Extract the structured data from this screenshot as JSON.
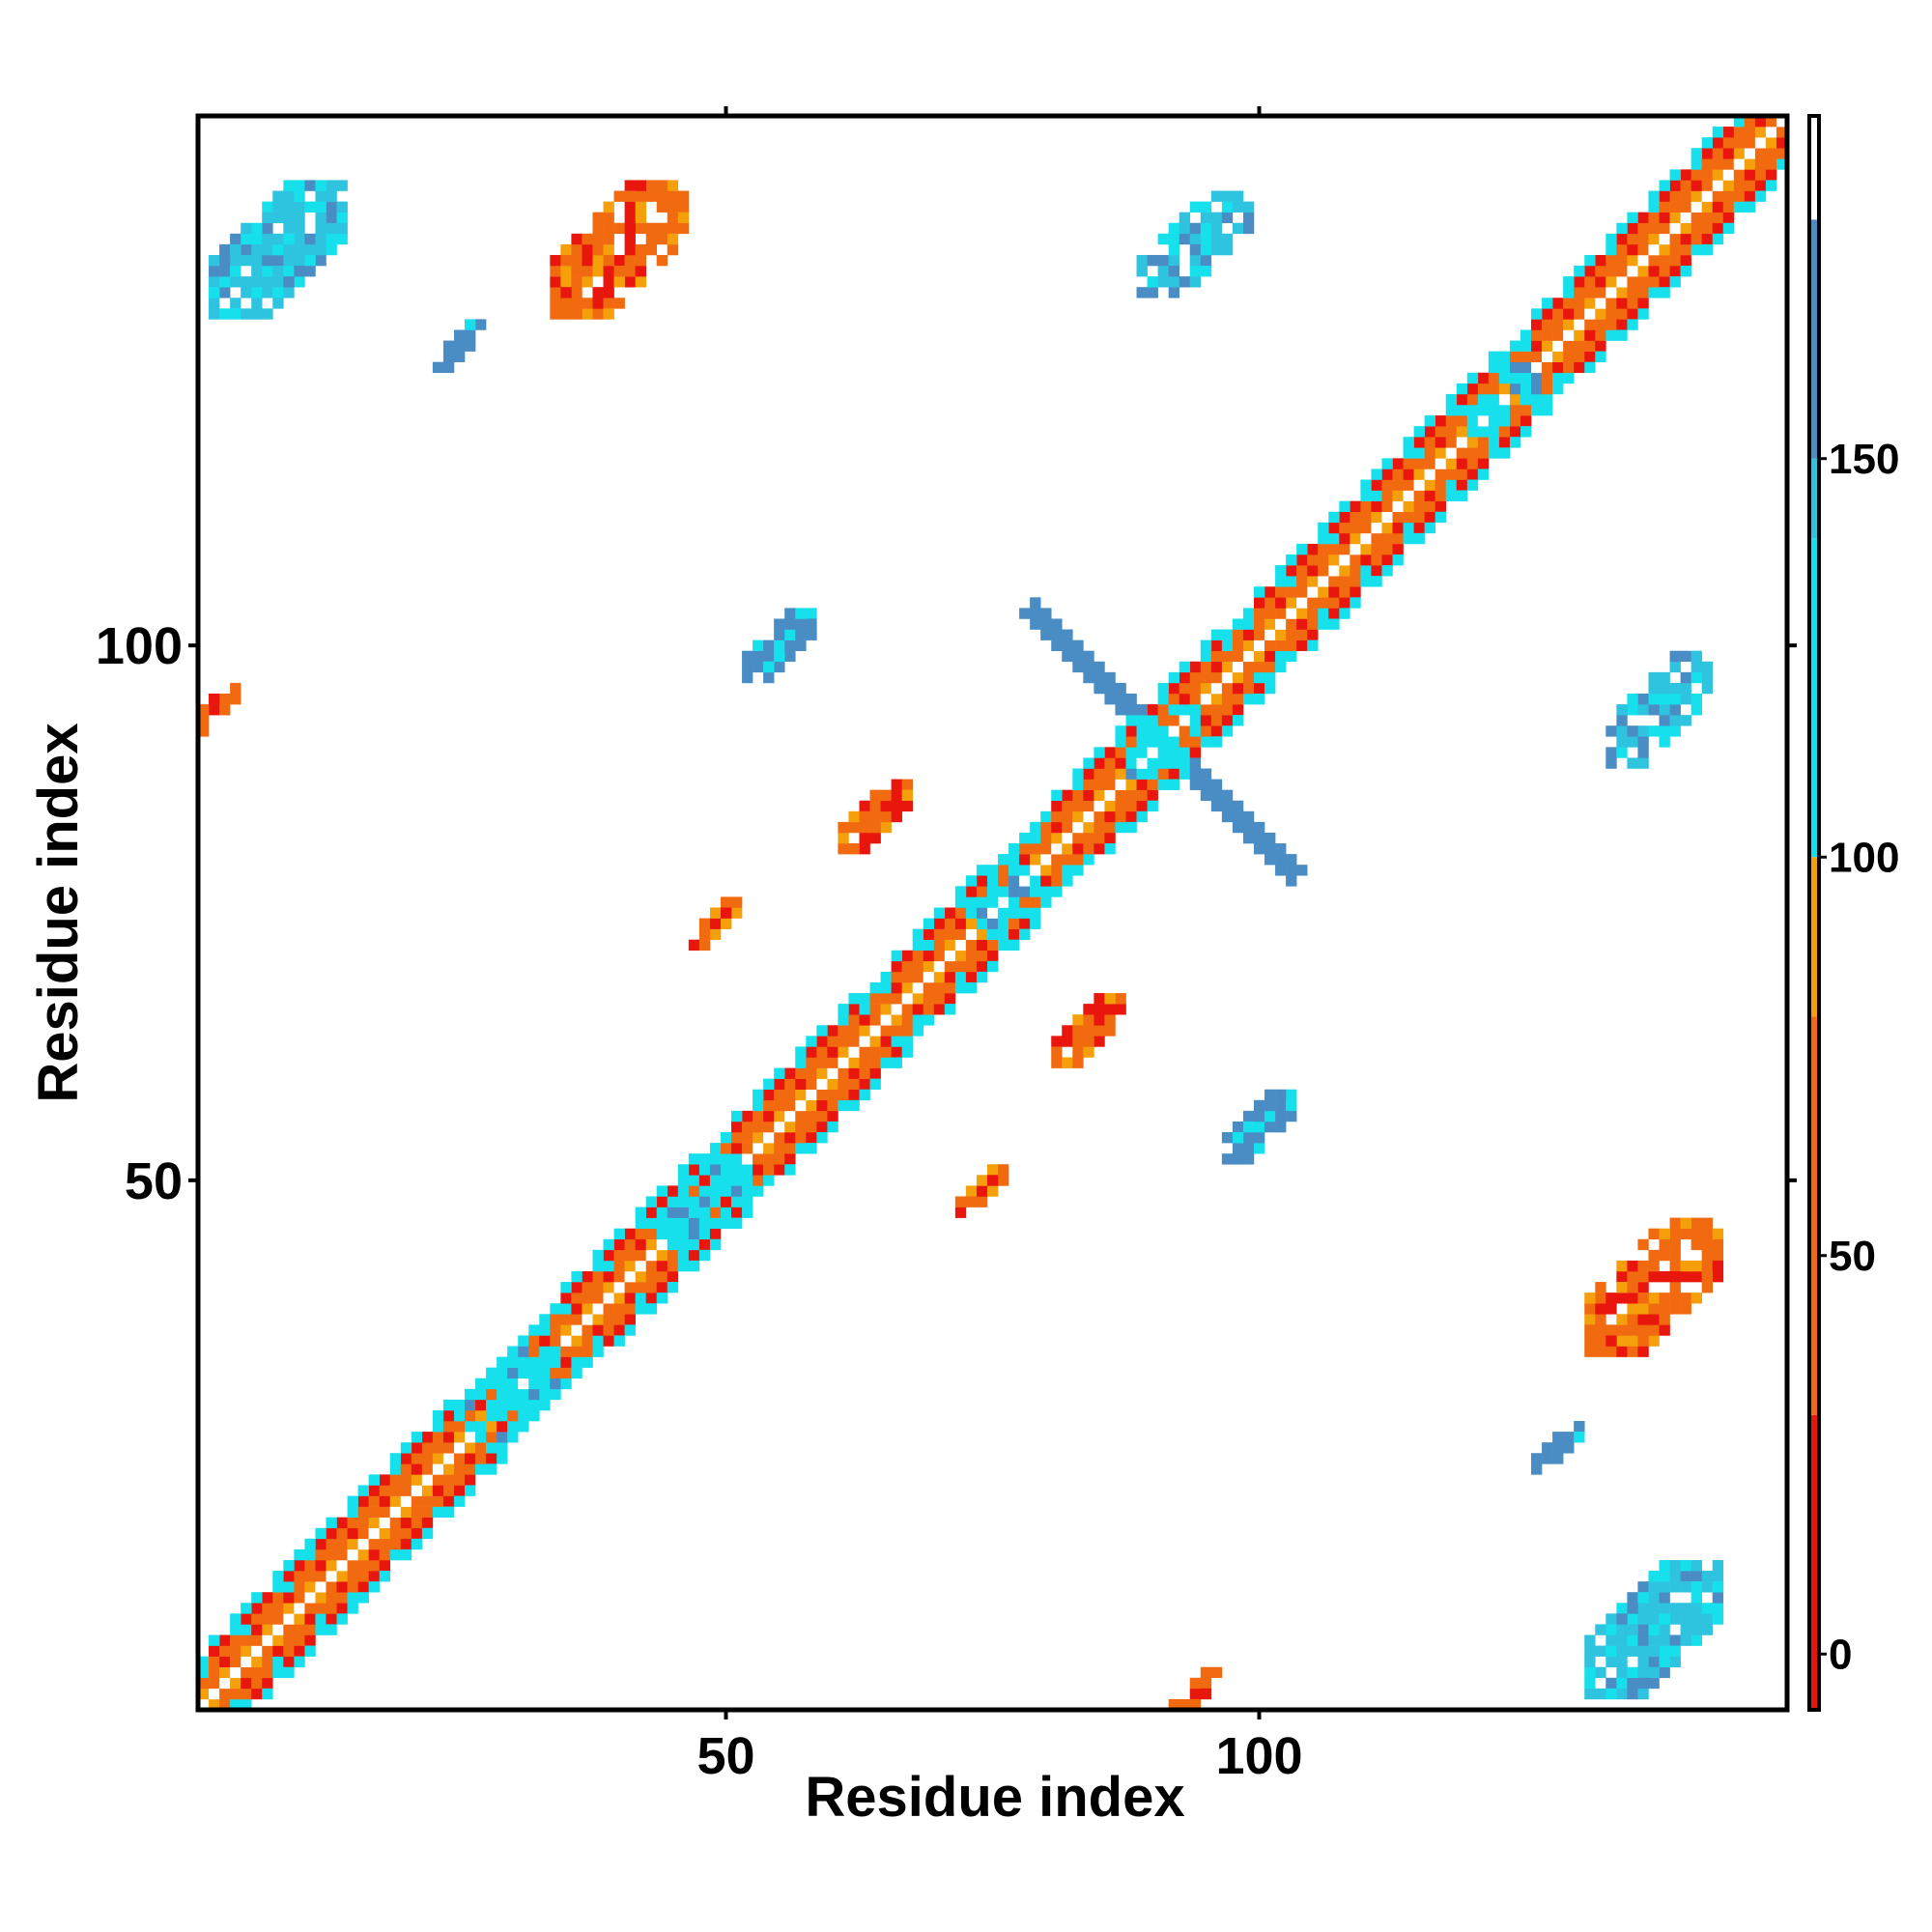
{
  "chart_data": {
    "type": "heatmap",
    "xlabel": "Residue index",
    "ylabel": "Residue index",
    "xlim": [
      1,
      149
    ],
    "ylim": [
      1,
      149
    ],
    "x_ticks": [
      50,
      100
    ],
    "y_ticks": [
      50,
      100
    ],
    "grid": false,
    "colorbar": {
      "ticks": [
        0,
        50,
        100,
        150
      ],
      "range": [
        -7,
        193
      ],
      "bands": [
        {
          "from": -7,
          "to": 30,
          "color": "#e8160c"
        },
        {
          "from": 30,
          "to": 80,
          "color": "#f26a10"
        },
        {
          "from": 80,
          "to": 100,
          "color": "#f5a00a"
        },
        {
          "from": 100,
          "to": 140,
          "color": "#16e0ec"
        },
        {
          "from": 140,
          "to": 150,
          "color": "#2ec4e0"
        },
        {
          "from": 150,
          "to": 180,
          "color": "#4a8cc4"
        },
        {
          "from": 180,
          "to": 193,
          "color": "#ffffff"
        }
      ]
    },
    "colors": {
      "red": "#e8160c",
      "orange": "#f26a10",
      "amber": "#f5a00a",
      "cyan": "#16e0ec",
      "sky": "#2ec4e0",
      "steel": "#4a8cc4"
    },
    "diagonal": {
      "from": 1,
      "to": 149
    },
    "helix_segments": [
      [
        2,
        10
      ],
      [
        11,
        24
      ],
      [
        35,
        47
      ],
      [
        51,
        62
      ],
      [
        66,
        74
      ],
      [
        81,
        96
      ],
      [
        100,
        122
      ],
      [
        126,
        149
      ]
    ],
    "regions": [
      {
        "center": [
          30,
          30
        ],
        "radius": 4,
        "color": "cyan"
      },
      {
        "center": [
          48,
          48
        ],
        "radius": 4,
        "color": "cyan"
      },
      {
        "center": [
          76,
          76
        ],
        "radius": 3,
        "color": "cyan"
      },
      {
        "center": [
          91,
          91
        ],
        "radius": 3,
        "color": "cyan"
      },
      {
        "center": [
          123,
          123
        ],
        "radius": 3,
        "color": "cyan"
      },
      {
        "center": [
          8,
          137
        ],
        "radius": 6,
        "color": "sky"
      },
      {
        "center": [
          25,
          128
        ],
        "radius": 2,
        "color": "steel"
      },
      {
        "center": [
          40,
          137
        ],
        "radius": 6,
        "color": "orange"
      },
      {
        "center": [
          93,
          137
        ],
        "radius": 4,
        "color": "sky"
      },
      {
        "center": [
          55,
          100
        ],
        "radius": 3,
        "color": "steel"
      },
      {
        "center": [
          64,
          84
        ],
        "radius": 3,
        "color": "orange"
      },
      {
        "center": [
          49,
          74
        ],
        "radius": 2,
        "color": "orange"
      },
      {
        "center": [
          84,
          64
        ],
        "radius": 3,
        "color": "orange"
      },
      {
        "center": [
          100,
          55
        ],
        "radius": 3,
        "color": "steel"
      },
      {
        "center": [
          74,
          49
        ],
        "radius": 2,
        "color": "orange"
      },
      {
        "center": [
          137,
          40
        ],
        "radius": 6,
        "color": "orange"
      },
      {
        "center": [
          137,
          8
        ],
        "radius": 6,
        "color": "sky"
      },
      {
        "center": [
          128,
          25
        ],
        "radius": 2,
        "color": "steel"
      },
      {
        "center": [
          2,
          94
        ],
        "radius": 2,
        "color": "orange"
      },
      {
        "center": [
          94,
          2
        ],
        "radius": 2,
        "color": "orange"
      },
      {
        "center": [
          138,
          95
        ],
        "radius": 4,
        "color": "sky"
      }
    ],
    "crossing_band": {
      "center": [
        91,
        91
      ],
      "half_length": 12,
      "color": "steel"
    }
  }
}
